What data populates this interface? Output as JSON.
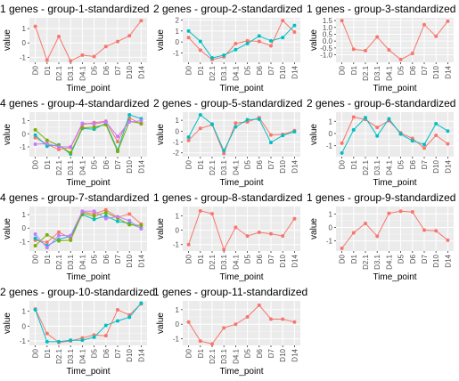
{
  "figure": {
    "background": "#ffffff",
    "panel_background": "#ebebeb",
    "grid_color": "#ffffff",
    "series_colors": [
      "#F8766D",
      "#00BFC4",
      "#7CAE00",
      "#C77CFF"
    ]
  },
  "chart_data": [
    {
      "type": "line",
      "title": "1  genes -  group-1-standardized",
      "xlabel": "Time_point",
      "ylabel": "value",
      "categories": [
        "D0",
        "D1",
        "D2.1",
        "D3.1",
        "D4.1",
        "D5",
        "D6",
        "D7",
        "D10",
        "D14"
      ],
      "yticks": [
        -1,
        0,
        1
      ],
      "ylim": [
        -1.35,
        1.75
      ],
      "grid": true,
      "series": [
        {
          "values": [
            1.15,
            -1.2,
            0.45,
            -1.25,
            -0.85,
            -0.95,
            -0.25,
            0.1,
            0.5,
            1.55
          ]
        }
      ]
    },
    {
      "type": "line",
      "title": "2  genes -  group-2-standardized",
      "xlabel": "Time_point",
      "ylabel": "value",
      "categories": [
        "D0",
        "D1",
        "D2.1",
        "D3.1",
        "D4.1",
        "D5",
        "D6",
        "D7",
        "D10",
        "D14"
      ],
      "yticks": [
        -1,
        0,
        1,
        2
      ],
      "ylim": [
        -1.85,
        2.2
      ],
      "grid": true,
      "series": [
        {
          "values": [
            0.4,
            -0.75,
            -1.6,
            -1.35,
            -0.15,
            0.1,
            0.05,
            -0.35,
            1.95,
            0.9
          ]
        },
        {
          "values": [
            1.0,
            0.05,
            -1.45,
            -1.2,
            -0.7,
            -0.15,
            0.55,
            0.1,
            0.4,
            1.5
          ]
        }
      ]
    },
    {
      "type": "line",
      "title": "1  genes -  group-3-standardized",
      "xlabel": "Time_point",
      "ylabel": "value",
      "categories": [
        "D0",
        "D1",
        "D2.1",
        "D3.1",
        "D4.1",
        "D5",
        "D6",
        "D7",
        "D10",
        "D14"
      ],
      "yticks": [
        -1.0,
        -0.5,
        0.0,
        0.5,
        1.0,
        1.5
      ],
      "ylim": [
        -1.55,
        1.7
      ],
      "grid": true,
      "series": [
        {
          "values": [
            1.5,
            -0.6,
            -0.7,
            0.3,
            -0.65,
            -1.35,
            -0.9,
            1.2,
            0.35,
            1.45
          ]
        }
      ]
    },
    {
      "type": "line",
      "title": "4  genes -  group-4-standardized",
      "xlabel": "Time_point",
      "ylabel": "value",
      "categories": [
        "D0",
        "D1",
        "D2.1",
        "D3.1",
        "D4.1",
        "D5",
        "D6",
        "D7",
        "D10",
        "D14"
      ],
      "yticks": [
        -1,
        0,
        1
      ],
      "ylim": [
        -1.75,
        1.65
      ],
      "grid": true,
      "series": [
        {
          "values": [
            -0.3,
            -0.8,
            -1.2,
            -1.05,
            0.7,
            0.85,
            0.95,
            -0.6,
            1.2,
            0.75
          ]
        },
        {
          "values": [
            -0.1,
            -0.95,
            -0.85,
            -1.55,
            0.4,
            0.35,
            0.8,
            -1.25,
            1.45,
            1.15
          ]
        },
        {
          "values": [
            0.3,
            -0.5,
            -0.9,
            -1.45,
            0.45,
            0.5,
            0.7,
            -1.35,
            0.95,
            0.8
          ]
        },
        {
          "values": [
            -0.8,
            -0.75,
            -1.0,
            -1.0,
            0.8,
            0.75,
            0.9,
            -0.2,
            0.9,
            1.0
          ]
        }
      ]
    },
    {
      "type": "line",
      "title": "2  genes -  group-5-standardized",
      "xlabel": "Time_point",
      "ylabel": "value",
      "categories": [
        "D0",
        "D1",
        "D2.1",
        "D3.1",
        "D4.1",
        "D5",
        "D6",
        "D7",
        "D10",
        "D14"
      ],
      "yticks": [
        -2,
        -1,
        0,
        1
      ],
      "ylim": [
        -2.35,
        1.75
      ],
      "grid": true,
      "series": [
        {
          "values": [
            -0.85,
            0.25,
            0.6,
            -2.05,
            0.75,
            0.85,
            1.25,
            -0.35,
            -0.3,
            0.05
          ]
        },
        {
          "values": [
            -0.55,
            1.5,
            0.65,
            -1.8,
            0.4,
            1.05,
            1.1,
            -1.05,
            -0.4,
            -0.05
          ]
        }
      ]
    },
    {
      "type": "line",
      "title": "2  genes -  group-6-standardized",
      "xlabel": "Time_point",
      "ylabel": "value",
      "categories": [
        "D0",
        "D1",
        "D2.1",
        "D3.1",
        "D4.1",
        "D5",
        "D6",
        "D7",
        "D10",
        "D14"
      ],
      "yticks": [
        -1,
        0,
        1
      ],
      "ylim": [
        -1.9,
        1.75
      ],
      "grid": true,
      "series": [
        {
          "values": [
            -0.8,
            1.35,
            1.15,
            0.5,
            1.05,
            0.05,
            -0.4,
            -1.2,
            -0.15,
            -0.85
          ]
        },
        {
          "values": [
            -1.6,
            0.3,
            1.3,
            -0.2,
            1.2,
            -0.05,
            -0.6,
            -0.9,
            0.8,
            0.2
          ]
        }
      ]
    },
    {
      "type": "line",
      "title": "4  genes -  group-7-standardized",
      "xlabel": "Time_point",
      "ylabel": "value",
      "categories": [
        "D0",
        "D1",
        "D2.1",
        "D3.1",
        "D4.1",
        "D5",
        "D6",
        "D7",
        "D10",
        "D14"
      ],
      "yticks": [
        -1,
        0,
        1
      ],
      "ylim": [
        -1.7,
        1.6
      ],
      "grid": true,
      "series": [
        {
          "values": [
            -0.9,
            -1.05,
            -0.3,
            -0.75,
            1.2,
            1.05,
            1.35,
            0.8,
            1.05,
            0.3
          ]
        },
        {
          "values": [
            -0.75,
            -1.3,
            -0.85,
            -0.6,
            1.0,
            0.65,
            0.9,
            0.5,
            0.35,
            0.0
          ]
        },
        {
          "values": [
            -1.3,
            -0.5,
            -0.95,
            -0.9,
            1.1,
            0.9,
            1.15,
            0.75,
            0.25,
            0.2
          ]
        },
        {
          "values": [
            -0.45,
            -1.45,
            -0.55,
            -0.55,
            1.25,
            1.25,
            0.7,
            0.85,
            0.55,
            -0.05
          ]
        }
      ]
    },
    {
      "type": "line",
      "title": "1  genes -  group-8-standardized",
      "xlabel": "Time_point",
      "ylabel": "value",
      "categories": [
        "D0",
        "D1",
        "D2.1",
        "D3.1",
        "D4.1",
        "D5",
        "D6",
        "D7",
        "D10",
        "D14"
      ],
      "yticks": [
        -1,
        0,
        1
      ],
      "ylim": [
        -1.45,
        1.65
      ],
      "grid": true,
      "series": [
        {
          "values": [
            -1.0,
            1.35,
            1.15,
            -1.35,
            0.2,
            -0.4,
            -0.15,
            -0.25,
            -0.4,
            0.8
          ]
        }
      ]
    },
    {
      "type": "line",
      "title": "1  genes -  group-9-standardized",
      "xlabel": "Time_point",
      "ylabel": "value",
      "categories": [
        "D0",
        "D1",
        "D2.1",
        "D3.1",
        "D4.1",
        "D5",
        "D6",
        "D7",
        "D10",
        "D14"
      ],
      "yticks": [
        -1,
        0,
        1
      ],
      "ylim": [
        -1.75,
        1.55
      ],
      "grid": true,
      "series": [
        {
          "values": [
            -1.55,
            -0.4,
            0.3,
            -0.65,
            1.05,
            1.2,
            1.15,
            -0.2,
            -0.25,
            -0.95
          ]
        }
      ]
    },
    {
      "type": "line",
      "title": "2  genes -  group-10-standardized",
      "xlabel": "Time_point",
      "ylabel": "value",
      "categories": [
        "D0",
        "D1",
        "D2.1",
        "D3.1",
        "D4.1",
        "D5",
        "D6",
        "D7",
        "D10",
        "D14"
      ],
      "yticks": [
        -1,
        0,
        1
      ],
      "ylim": [
        -1.3,
        1.7
      ],
      "grid": true,
      "series": [
        {
          "values": [
            1.15,
            -0.5,
            -1.1,
            -1.0,
            -0.8,
            -0.6,
            -0.65,
            1.1,
            0.75,
            1.5
          ]
        },
        {
          "values": [
            1.1,
            -1.05,
            -1.05,
            -0.95,
            -0.95,
            -0.75,
            0.05,
            0.35,
            0.6,
            1.55
          ]
        }
      ]
    },
    {
      "type": "line",
      "title": "1  genes -  group-11-standardized",
      "xlabel": "Time_point",
      "ylabel": "value",
      "categories": [
        "D0",
        "D1",
        "D2.1",
        "D3.1",
        "D4.1",
        "D5",
        "D6",
        "D7",
        "D10",
        "D14"
      ],
      "yticks": [
        -1,
        0,
        1
      ],
      "ylim": [
        -1.45,
        1.6
      ],
      "grid": true,
      "series": [
        {
          "values": [
            0.15,
            -1.15,
            -1.35,
            -0.25,
            0.0,
            0.5,
            1.3,
            0.35,
            0.35,
            0.15
          ]
        }
      ]
    }
  ]
}
